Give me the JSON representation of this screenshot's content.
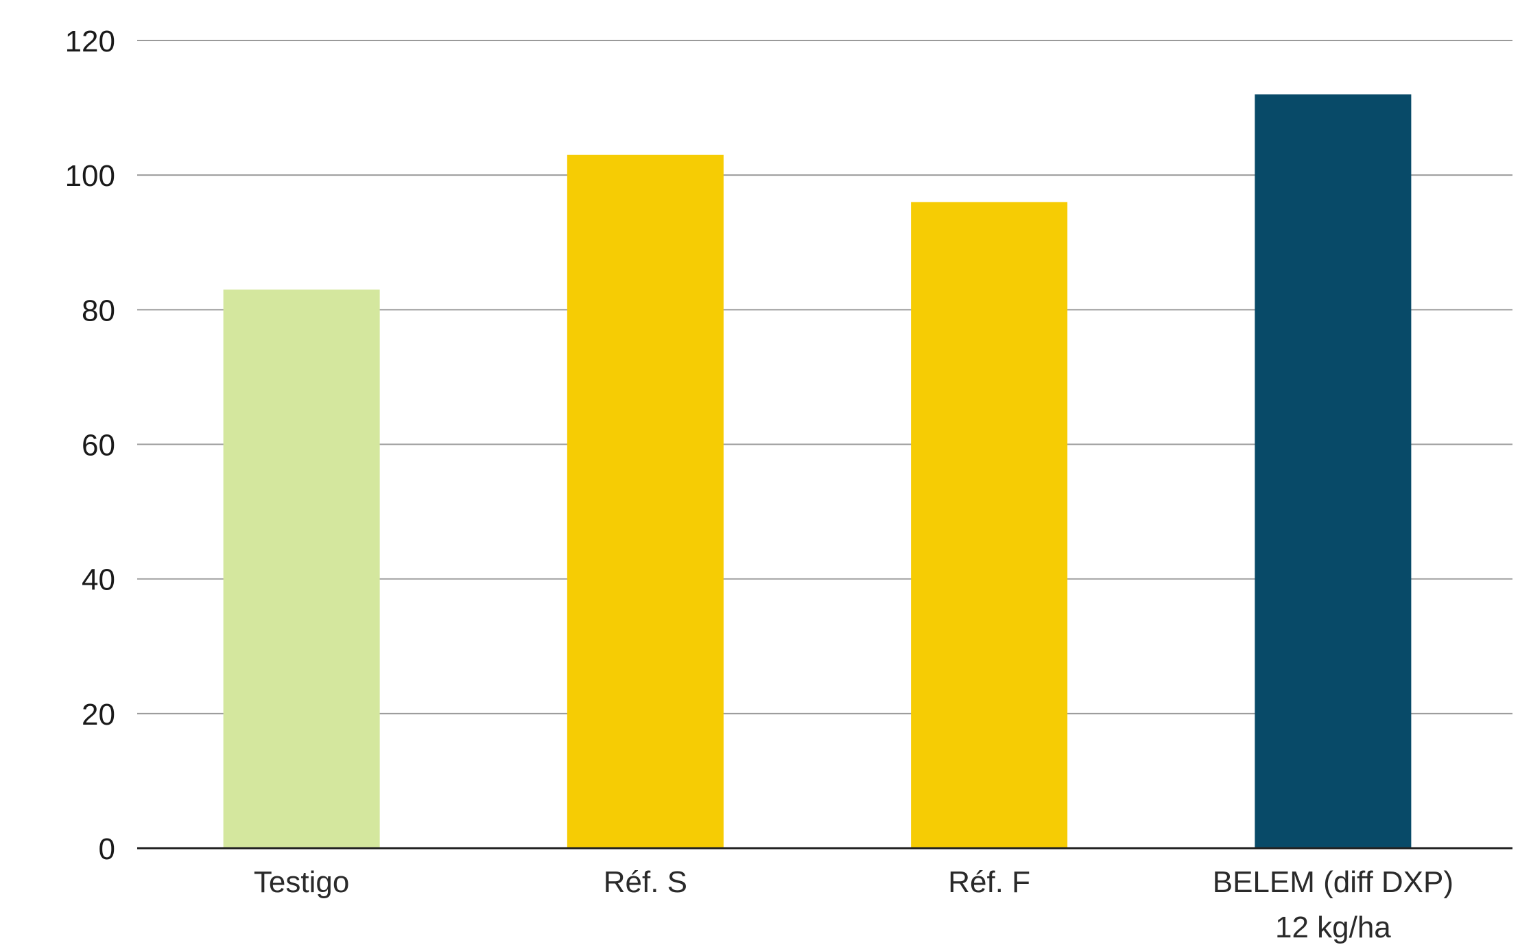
{
  "chart_data": {
    "type": "bar",
    "title": "",
    "xlabel": "",
    "ylabel": "",
    "categories": [
      [
        "Testigo"
      ],
      [
        "Réf. S"
      ],
      [
        "Réf. F"
      ],
      [
        "BELEM (diff DXP)",
        "12 kg/ha"
      ]
    ],
    "values": [
      83,
      103,
      96,
      112
    ],
    "colors": [
      "#d4e79e",
      "#f6cc04",
      "#f6cc04",
      "#084a68"
    ],
    "ylim": [
      0,
      120
    ],
    "yticks": [
      0,
      20,
      40,
      60,
      80,
      100,
      120
    ],
    "grid": true,
    "legend": "none"
  }
}
